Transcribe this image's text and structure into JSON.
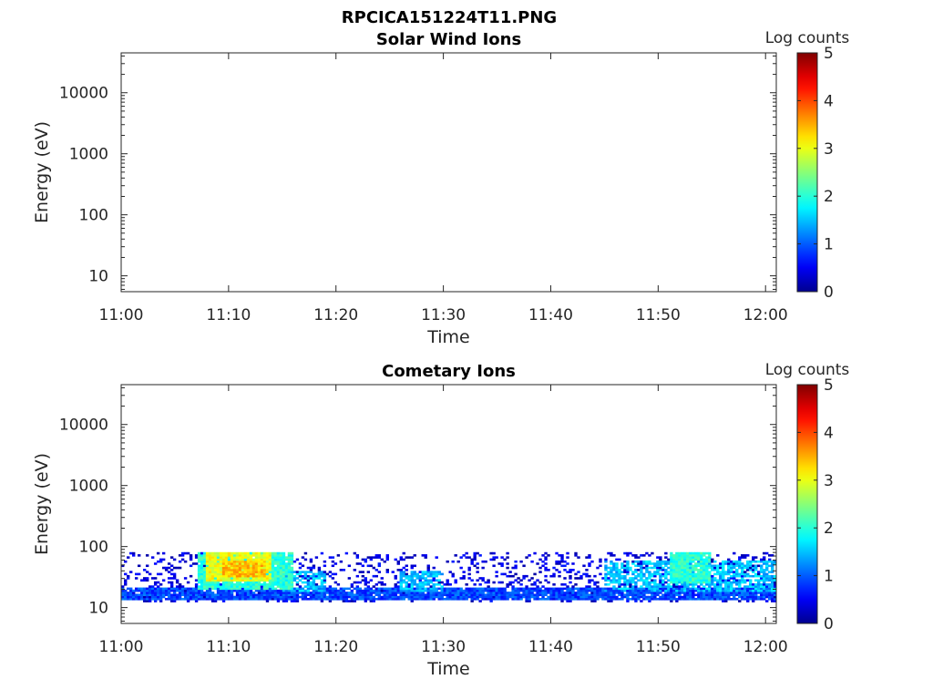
{
  "figure_title": "RPCICA151224T11.PNG",
  "colors": {
    "axis": "#262626",
    "colormap": [
      "#00008f",
      "#0000ff",
      "#00ffff",
      "#ffff00",
      "#ff0000",
      "#800000"
    ]
  },
  "chart_data": [
    {
      "type": "heatmap",
      "title": "Solar Wind Ions",
      "xlabel": "Time",
      "ylabel": "Energy (eV)",
      "x_ticks": [
        "11:00",
        "11:10",
        "11:20",
        "11:30",
        "11:40",
        "11:50",
        "12:00"
      ],
      "y_ticks": [
        "10",
        "100",
        "1000",
        "10000"
      ],
      "y_scale": "log",
      "ylim": [
        5.5,
        45000
      ],
      "xlim": [
        "11:00",
        "12:01"
      ],
      "colorbar": {
        "label": "Log counts",
        "ticks": [
          "0",
          "1",
          "2",
          "3",
          "4",
          "5"
        ],
        "range": [
          0,
          5
        ]
      },
      "data_regions": []
    },
    {
      "type": "heatmap",
      "title": "Cometary Ions",
      "xlabel": "Time",
      "ylabel": "Energy (eV)",
      "x_ticks": [
        "11:00",
        "11:10",
        "11:20",
        "11:30",
        "11:40",
        "11:50",
        "12:00"
      ],
      "y_ticks": [
        "10",
        "100",
        "1000",
        "10000"
      ],
      "y_scale": "log",
      "ylim": [
        5.5,
        45000
      ],
      "xlim": [
        "11:00",
        "12:01"
      ],
      "colorbar": {
        "label": "Log counts",
        "ticks": [
          "0",
          "1",
          "2",
          "3",
          "4",
          "5"
        ],
        "range": [
          0,
          5
        ]
      },
      "data_regions": [
        {
          "t_start": 0,
          "t_end": 61,
          "e_low": 12,
          "e_high": 80,
          "log_counts": 0.4,
          "coverage": "scattered"
        },
        {
          "t_start": 0,
          "t_end": 61,
          "e_low": 13,
          "e_high": 22,
          "log_counts": 0.9,
          "coverage": "dense"
        },
        {
          "t_start": 7,
          "t_end": 16,
          "e_low": 20,
          "e_high": 80,
          "log_counts": 2.0,
          "coverage": "dense"
        },
        {
          "t_start": 8,
          "t_end": 14,
          "e_low": 28,
          "e_high": 80,
          "log_counts": 3.0,
          "coverage": "dense"
        },
        {
          "t_start": 9.5,
          "t_end": 13.5,
          "e_low": 32,
          "e_high": 60,
          "log_counts": 3.4,
          "coverage": "dense"
        },
        {
          "t_start": 15,
          "t_end": 19,
          "e_low": 18,
          "e_high": 40,
          "log_counts": 1.5,
          "coverage": "patchy"
        },
        {
          "t_start": 26,
          "t_end": 30,
          "e_low": 18,
          "e_high": 40,
          "log_counts": 1.5,
          "coverage": "patchy"
        },
        {
          "t_start": 45,
          "t_end": 61,
          "e_low": 18,
          "e_high": 60,
          "log_counts": 1.5,
          "coverage": "patchy"
        },
        {
          "t_start": 51,
          "t_end": 55,
          "e_low": 25,
          "e_high": 80,
          "log_counts": 2.0,
          "coverage": "dense"
        }
      ]
    }
  ]
}
